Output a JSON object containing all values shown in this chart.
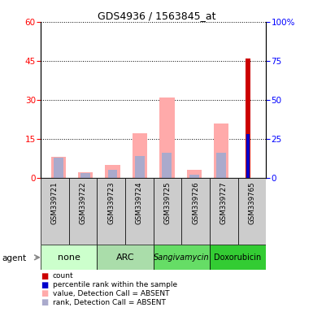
{
  "title": "GDS4936 / 1563845_at",
  "samples": [
    "GSM339721",
    "GSM339722",
    "GSM339723",
    "GSM339724",
    "GSM339725",
    "GSM339726",
    "GSM339727",
    "GSM339765"
  ],
  "value_absent": [
    8,
    2,
    5,
    17,
    31,
    3,
    21,
    0
  ],
  "rank_absent": [
    13,
    3,
    5,
    14,
    16,
    2,
    16,
    0
  ],
  "count_value": [
    0,
    0,
    0,
    0,
    0,
    0,
    0,
    46
  ],
  "percentile_rank": [
    0,
    0,
    0,
    0,
    0,
    0,
    0,
    28
  ],
  "ylim_left": [
    0,
    60
  ],
  "ylim_right": [
    0,
    100
  ],
  "yticks_left": [
    0,
    15,
    30,
    45,
    60
  ],
  "yticks_right": [
    0,
    25,
    50,
    75,
    100
  ],
  "color_count": "#cc0000",
  "color_percentile": "#0000cc",
  "color_value_absent": "#ffaaaa",
  "color_rank_absent": "#aaaacc",
  "color_sample_bg": "#cccccc",
  "agent_groups": [
    {
      "label": "none",
      "start": 0,
      "end": 1,
      "color": "#ccffcc"
    },
    {
      "label": "ARC",
      "start": 2,
      "end": 3,
      "color": "#aaddaa"
    },
    {
      "label": "Sangivamycin",
      "start": 4,
      "end": 5,
      "color": "#66dd66"
    },
    {
      "label": "Doxorubicin",
      "start": 6,
      "end": 7,
      "color": "#33cc33"
    }
  ],
  "legend_labels": [
    "count",
    "percentile rank within the sample",
    "value, Detection Call = ABSENT",
    "rank, Detection Call = ABSENT"
  ],
  "legend_colors": [
    "#cc0000",
    "#0000cc",
    "#ffaaaa",
    "#aaaacc"
  ]
}
